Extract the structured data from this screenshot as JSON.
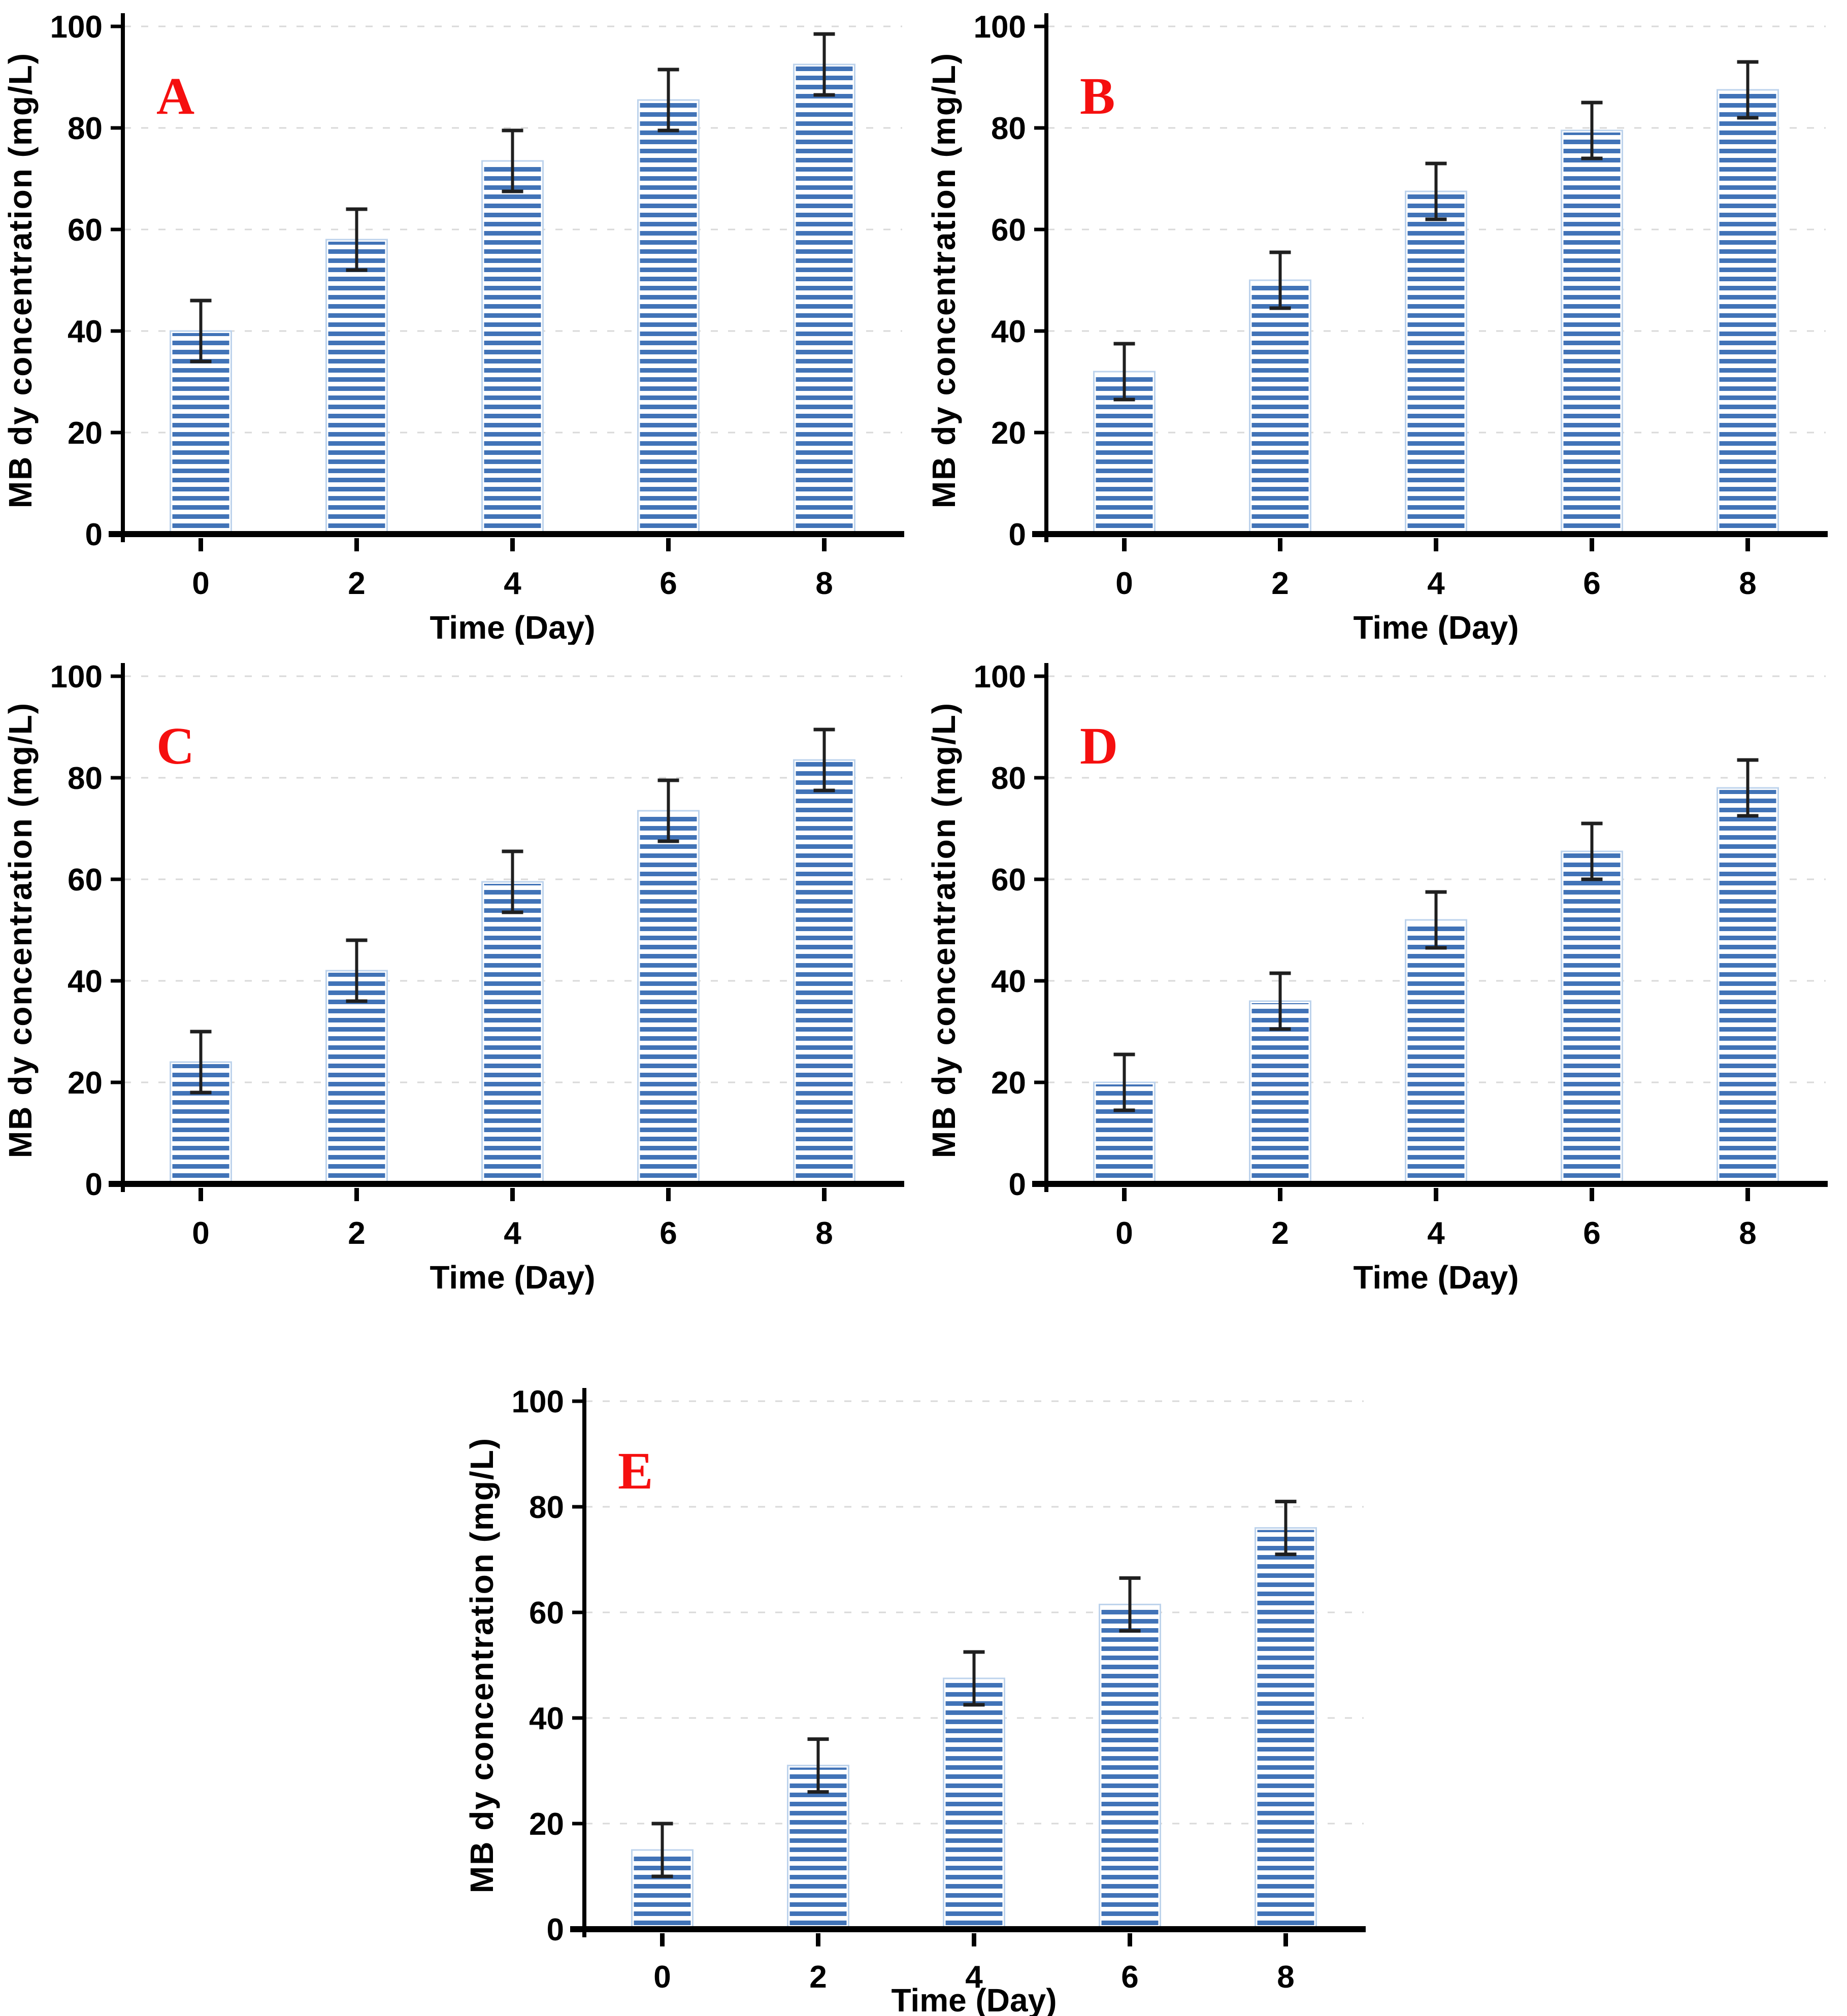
{
  "figure": {
    "description": "Five striped bar charts (panels A-E) of MB dy concentration versus time",
    "background_color": "#ffffff",
    "panel_letter_color": "#f50f0f",
    "bar_stripe_color": "#4173b7",
    "bar_background_color": "#ffffff",
    "bar_border_color": "#bdd3ec",
    "error_bar_color": "#1f1f1f",
    "gridline_color": "#d9d9d9",
    "axis_color": "#000000",
    "tick_label_color": "#000000"
  },
  "chart_data": [
    {
      "type": "bar",
      "panel_label": "A",
      "title": "",
      "xlabel": "Time (Day)",
      "ylabel": "MB dy concentration (mg/L)",
      "categories": [
        "0",
        "2",
        "4",
        "6",
        "8"
      ],
      "values": [
        40,
        58,
        73.5,
        85.5,
        92.5
      ],
      "errors": [
        6,
        6,
        6,
        6,
        6
      ],
      "ylim": [
        0,
        100
      ],
      "yticks": [
        0,
        20,
        40,
        60,
        80,
        100
      ],
      "grid": "horizontal-dashed",
      "legend": "none"
    },
    {
      "type": "bar",
      "panel_label": "B",
      "title": "",
      "xlabel": "Time (Day)",
      "ylabel": "MB dy concentration (mg/L)",
      "categories": [
        "0",
        "2",
        "4",
        "6",
        "8"
      ],
      "values": [
        32,
        50,
        67.5,
        79.5,
        87.5
      ],
      "errors": [
        5.5,
        5.5,
        5.5,
        5.5,
        5.5
      ],
      "ylim": [
        0,
        100
      ],
      "yticks": [
        0,
        20,
        40,
        60,
        80,
        100
      ],
      "grid": "horizontal-dashed",
      "legend": "none"
    },
    {
      "type": "bar",
      "panel_label": "C",
      "title": "",
      "xlabel": "Time (Day)",
      "ylabel": "MB dy concentration (mg/L)",
      "categories": [
        "0",
        "2",
        "4",
        "6",
        "8"
      ],
      "values": [
        24,
        42,
        59.5,
        73.5,
        83.5
      ],
      "errors": [
        6,
        6,
        6,
        6,
        6
      ],
      "ylim": [
        0,
        100
      ],
      "yticks": [
        0,
        20,
        40,
        60,
        80,
        100
      ],
      "grid": "horizontal-dashed",
      "legend": "none"
    },
    {
      "type": "bar",
      "panel_label": "D",
      "title": "",
      "xlabel": "Time (Day)",
      "ylabel": "MB dy concentration (mg/L)",
      "categories": [
        "0",
        "2",
        "4",
        "6",
        "8"
      ],
      "values": [
        20,
        36,
        52,
        65.5,
        78
      ],
      "errors": [
        5.5,
        5.5,
        5.5,
        5.5,
        5.5
      ],
      "ylim": [
        0,
        100
      ],
      "yticks": [
        0,
        20,
        40,
        60,
        80,
        100
      ],
      "grid": "horizontal-dashed",
      "legend": "none"
    },
    {
      "type": "bar",
      "panel_label": "E",
      "title": "",
      "xlabel": "Time (Day)",
      "ylabel": "MB dy concentration (mg/L)",
      "categories": [
        "0",
        "2",
        "4",
        "6",
        "8"
      ],
      "values": [
        15,
        31,
        47.5,
        61.5,
        76
      ],
      "errors": [
        5,
        5,
        5,
        5,
        5
      ],
      "ylim": [
        0,
        100
      ],
      "yticks": [
        0,
        20,
        40,
        60,
        80,
        100
      ],
      "grid": "horizontal-dashed",
      "legend": "none"
    }
  ]
}
